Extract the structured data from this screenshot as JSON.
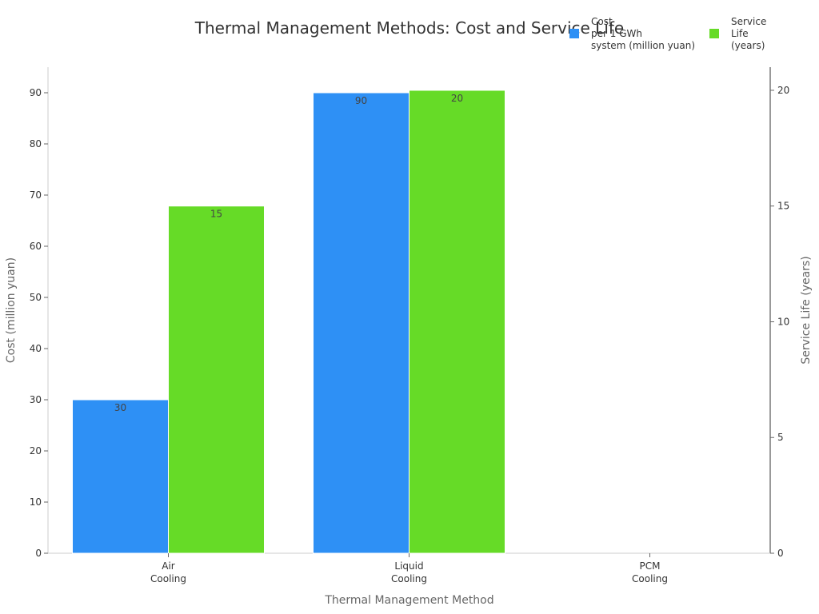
{
  "chart_data": {
    "type": "bar",
    "title": "Thermal Management Methods: Cost and Service Life",
    "xlabel": "Thermal Management Method",
    "ylabel": "Cost (million yuan)",
    "y2label": "Service Life (years)",
    "categories": [
      [
        "Air",
        "Cooling"
      ],
      [
        "Liquid",
        "Cooling"
      ],
      [
        "PCM",
        "Cooling"
      ]
    ],
    "series": [
      {
        "name": "Cost per 1 GWh system (million yuan)",
        "legend_lines": [
          "Cost",
          "per 1 GWh",
          "system (million yuan)"
        ],
        "axis": "left",
        "color": "#2e90f5",
        "values": [
          30,
          90,
          null
        ]
      },
      {
        "name": "Service Life (years)",
        "legend_lines": [
          "Service",
          "Life",
          "(years)"
        ],
        "axis": "right",
        "color": "#66db27",
        "values": [
          15,
          20,
          null
        ]
      }
    ],
    "ylim": [
      0,
      95
    ],
    "y2lim": [
      0,
      21
    ],
    "yticks": [
      0,
      10,
      20,
      30,
      40,
      50,
      60,
      70,
      80,
      90
    ],
    "y2ticks": [
      0,
      5,
      10,
      15,
      20
    ],
    "grid": false,
    "legend_position": "top-right"
  }
}
